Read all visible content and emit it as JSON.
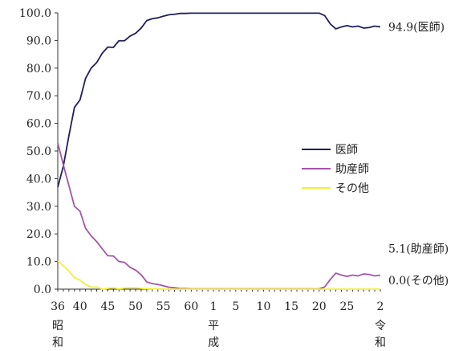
{
  "chart_data": {
    "type": "line",
    "title": "",
    "xlabel": "",
    "ylabel": "",
    "ylim": [
      0,
      100
    ],
    "y_ticks": [
      "0.0",
      "10.0",
      "20.0",
      "30.0",
      "40.0",
      "50.0",
      "60.0",
      "70.0",
      "80.0",
      "90.0",
      "100.0"
    ],
    "x_index_range": [
      0,
      58
    ],
    "x_ticks": [
      {
        "i": 0,
        "label": "36"
      },
      {
        "i": 4,
        "label": "40"
      },
      {
        "i": 9,
        "label": "45"
      },
      {
        "i": 14,
        "label": "50"
      },
      {
        "i": 19,
        "label": "55"
      },
      {
        "i": 24,
        "label": "60"
      },
      {
        "i": 28,
        "label": "1"
      },
      {
        "i": 32,
        "label": "5"
      },
      {
        "i": 37,
        "label": "10"
      },
      {
        "i": 42,
        "label": "15"
      },
      {
        "i": 47,
        "label": "20"
      },
      {
        "i": 52,
        "label": "25"
      },
      {
        "i": 58,
        "label": "2"
      }
    ],
    "era_labels": [
      {
        "i": 0,
        "chars": [
          "昭",
          "和"
        ]
      },
      {
        "i": 28,
        "chars": [
          "平",
          "成"
        ]
      },
      {
        "i": 58,
        "chars": [
          "令",
          "和"
        ]
      }
    ],
    "legend": {
      "position": "right-middle"
    },
    "series": [
      {
        "name": "医師",
        "color": "#1f1f5e",
        "end_label": "94.9(医師)",
        "values": [
          36.9,
          44.5,
          55.5,
          65.8,
          68.5,
          76.3,
          80.0,
          82.0,
          85.4,
          87.6,
          87.5,
          89.9,
          89.9,
          91.6,
          92.6,
          94.5,
          97.2,
          97.9,
          98.2,
          98.8,
          99.3,
          99.5,
          99.8,
          99.8,
          99.9,
          99.9,
          99.9,
          99.9,
          99.9,
          99.9,
          99.9,
          99.9,
          99.9,
          99.9,
          99.9,
          99.9,
          99.9,
          99.9,
          99.9,
          99.9,
          99.9,
          99.9,
          99.9,
          99.9,
          99.9,
          99.9,
          99.9,
          99.9,
          99.0,
          96.0,
          94.2,
          94.9,
          95.4,
          94.9,
          95.2,
          94.5,
          94.7,
          95.2,
          94.9
        ]
      },
      {
        "name": "助産師",
        "color": "#a455a8",
        "end_label": "5.1(助産師)",
        "values": [
          52.9,
          45.0,
          37.5,
          30.0,
          28.2,
          22.0,
          19.3,
          17.2,
          14.6,
          12.1,
          12.0,
          10.0,
          9.7,
          7.9,
          6.9,
          5.2,
          2.6,
          2.0,
          1.7,
          1.2,
          0.7,
          0.5,
          0.2,
          0.2,
          0.1,
          0.1,
          0.1,
          0.1,
          0.1,
          0.1,
          0.1,
          0.1,
          0.1,
          0.1,
          0.1,
          0.1,
          0.1,
          0.1,
          0.1,
          0.1,
          0.1,
          0.1,
          0.1,
          0.1,
          0.1,
          0.1,
          0.1,
          0.1,
          0.8,
          3.5,
          5.8,
          5.1,
          4.6,
          5.1,
          4.8,
          5.5,
          5.3,
          4.8,
          5.1
        ]
      },
      {
        "name": "その他",
        "color": "#f2ef3a",
        "end_label": "0.0(その他)",
        "values": [
          10.2,
          8.5,
          6.5,
          4.2,
          3.3,
          1.7,
          0.7,
          0.8,
          0.0,
          0.3,
          0.5,
          0.1,
          0.4,
          0.5,
          0.5,
          0.3,
          0.2,
          0.1,
          0.1,
          0.0,
          0.0,
          0.0,
          0.0,
          0.0,
          0.0,
          0.0,
          0.0,
          0.0,
          0.0,
          0.0,
          0.0,
          0.0,
          0.0,
          0.0,
          0.0,
          0.0,
          0.0,
          0.0,
          0.0,
          0.0,
          0.0,
          0.0,
          0.0,
          0.0,
          0.0,
          0.0,
          0.0,
          0.0,
          0.0,
          0.0,
          0.0,
          0.0,
          0.0,
          0.0,
          0.0,
          0.0,
          0.0,
          0.0,
          0.0
        ]
      }
    ]
  }
}
